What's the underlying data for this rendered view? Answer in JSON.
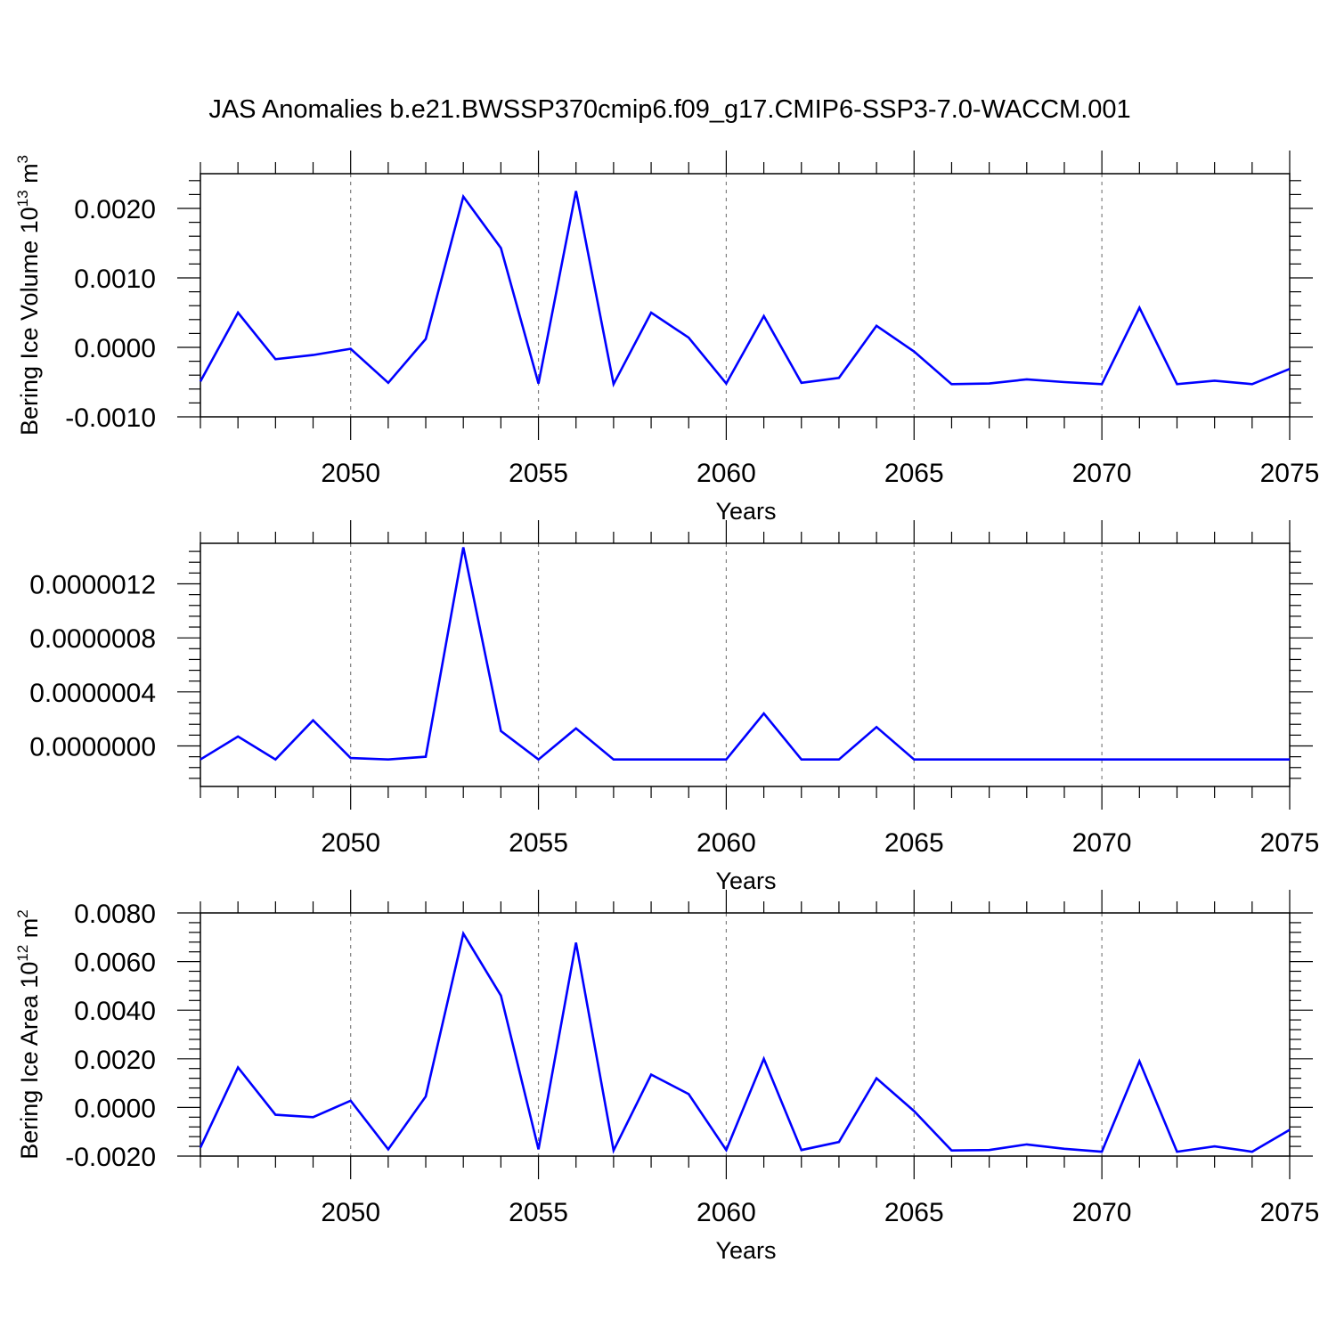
{
  "title": "JAS Anomalies b.e21.BWSSP370cmip6.f09_g17.CMIP6-SSP3-7.0-WACCM.001",
  "line_color": "#0000ff",
  "grid_color": "#7f7f7f",
  "chart_data": [
    {
      "type": "line",
      "xlabel": "Years",
      "ylabel": "Bering Ice Volume 10",
      "ylabel_exp": "13",
      "ylabel_unit": " m",
      "ylabel_unit_exp": "3",
      "xlim": [
        2046,
        2075
      ],
      "ylim": [
        -0.001,
        0.0025
      ],
      "xticks": [
        2050,
        2055,
        2060,
        2065,
        2070,
        2075
      ],
      "xtick_labels": [
        "2050",
        "2055",
        "2060",
        "2065",
        "2070",
        "2075"
      ],
      "yticks": [
        -0.001,
        0.0,
        0.001,
        0.002
      ],
      "ytick_labels": [
        "-0.0010",
        "0.0000",
        "0.0010",
        "0.0020"
      ],
      "grid": "vertical dashed at major x ticks",
      "x": [
        2046,
        2047,
        2048,
        2049,
        2050,
        2051,
        2052,
        2053,
        2054,
        2055,
        2056,
        2057,
        2058,
        2059,
        2060,
        2061,
        2062,
        2063,
        2064,
        2065,
        2066,
        2067,
        2068,
        2069,
        2070,
        2071,
        2072,
        2073,
        2074,
        2075
      ],
      "values": [
        -0.00049,
        0.0005,
        -0.00017,
        -0.00011,
        -2e-05,
        -0.00051,
        0.00012,
        0.00217,
        0.00143,
        -0.00052,
        0.00225,
        -0.00053,
        0.0005,
        0.00014,
        -0.00052,
        0.00045,
        -0.00051,
        -0.00044,
        0.00031,
        -6e-05,
        -0.00053,
        -0.00052,
        -0.00046,
        -0.0005,
        -0.00053,
        0.00057,
        -0.00053,
        -0.00048,
        -0.00053,
        -0.00031
      ]
    },
    {
      "type": "line",
      "xlabel": "Years",
      "ylabel": "",
      "xlim": [
        2046,
        2075
      ],
      "ylim": [
        -3e-07,
        1.5e-06
      ],
      "xticks": [
        2050,
        2055,
        2060,
        2065,
        2070,
        2075
      ],
      "xtick_labels": [
        "2050",
        "2055",
        "2060",
        "2065",
        "2070",
        "2075"
      ],
      "yticks": [
        0.0,
        4e-07,
        8e-07,
        1.2e-06
      ],
      "ytick_labels": [
        "0.0000000",
        "0.0000004",
        "0.0000008",
        "0.0000012"
      ],
      "grid": "vertical dashed at major x ticks",
      "x": [
        2046,
        2047,
        2048,
        2049,
        2050,
        2051,
        2052,
        2053,
        2054,
        2055,
        2056,
        2057,
        2058,
        2059,
        2060,
        2061,
        2062,
        2063,
        2064,
        2065,
        2066,
        2067,
        2068,
        2069,
        2070,
        2071,
        2072,
        2073,
        2074,
        2075
      ],
      "values": [
        -1e-07,
        7e-08,
        -1e-07,
        1.9e-07,
        -9e-08,
        -1e-07,
        -8e-08,
        1.47e-06,
        1.1e-07,
        -1e-07,
        1.3e-07,
        -1e-07,
        -1e-07,
        -1e-07,
        -1e-07,
        2.4e-07,
        -1e-07,
        -1e-07,
        1.4e-07,
        -1e-07,
        -1e-07,
        -1e-07,
        -1e-07,
        -1e-07,
        -1e-07,
        -1e-07,
        -1e-07,
        -1e-07,
        -1e-07,
        -1e-07
      ]
    },
    {
      "type": "line",
      "xlabel": "Years",
      "ylabel": "Bering Ice Area 10",
      "ylabel_exp": "12",
      "ylabel_unit": " m",
      "ylabel_unit_exp": "2",
      "xlim": [
        2046,
        2075
      ],
      "ylim": [
        -0.002,
        0.008
      ],
      "xticks": [
        2050,
        2055,
        2060,
        2065,
        2070,
        2075
      ],
      "xtick_labels": [
        "2050",
        "2055",
        "2060",
        "2065",
        "2070",
        "2075"
      ],
      "yticks": [
        -0.002,
        0.0,
        0.002,
        0.004,
        0.006,
        0.008
      ],
      "ytick_labels": [
        "-0.0020",
        "0.0000",
        "0.0020",
        "0.0040",
        "0.0060",
        "0.0080"
      ],
      "grid": "vertical dashed at major x ticks",
      "x": [
        2046,
        2047,
        2048,
        2049,
        2050,
        2051,
        2052,
        2053,
        2054,
        2055,
        2056,
        2057,
        2058,
        2059,
        2060,
        2061,
        2062,
        2063,
        2064,
        2065,
        2066,
        2067,
        2068,
        2069,
        2070,
        2071,
        2072,
        2073,
        2074,
        2075
      ],
      "values": [
        -0.00165,
        0.00165,
        -0.0003,
        -0.0004,
        0.00028,
        -0.00172,
        0.00045,
        0.00715,
        0.0046,
        -0.00172,
        0.00678,
        -0.00177,
        0.00135,
        0.00055,
        -0.00175,
        0.002,
        -0.00175,
        -0.00142,
        0.0012,
        -0.00015,
        -0.00177,
        -0.00175,
        -0.00152,
        -0.0017,
        -0.00182,
        0.0019,
        -0.00182,
        -0.0016,
        -0.00182,
        -0.00092
      ]
    }
  ]
}
